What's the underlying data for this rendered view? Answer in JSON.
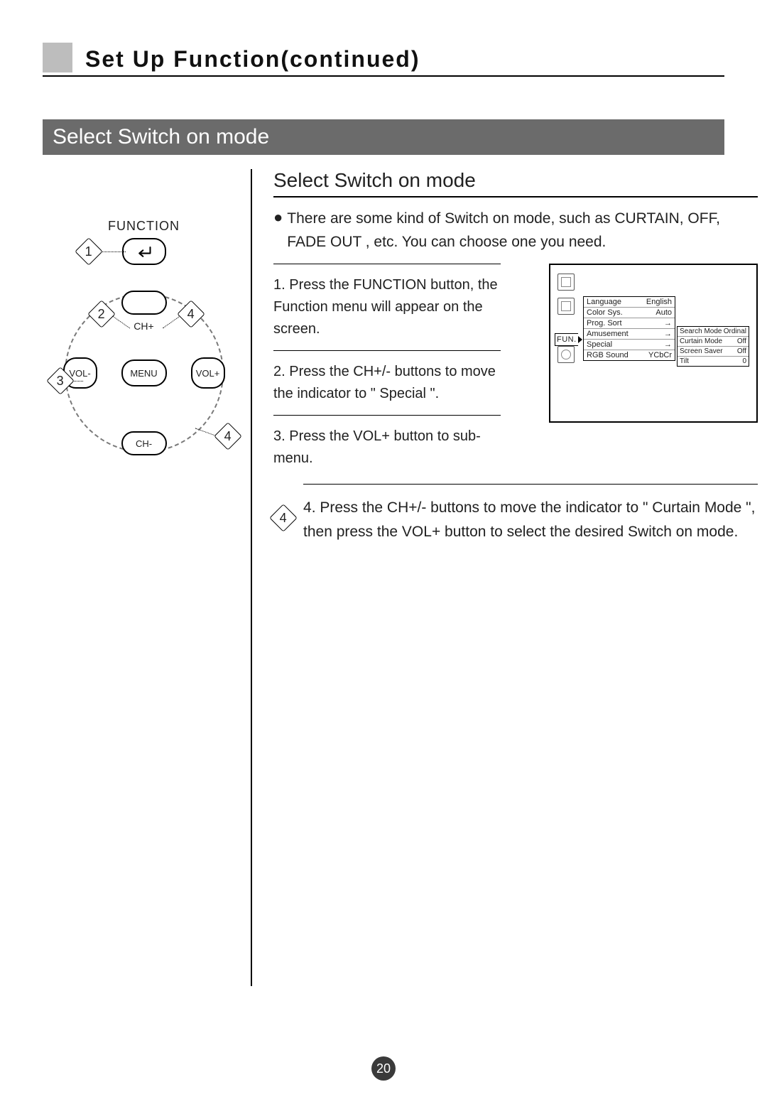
{
  "title": "Set Up Function(continued)",
  "banner": "Select Switch on mode",
  "right_heading": "Select Switch on mode",
  "intro": "There are some kind of  Switch on mode, such as CURTAIN, OFF, FADE OUT , etc. You can choose one you need.",
  "steps": {
    "s1": "1. Press the FUNCTION button, the Function menu will appear on the screen.",
    "s2_lead": "2",
    "s2_rest": ". Press the CH+/- buttons to move the indicator to \" Special \".",
    "s3_lead": "3",
    "s3_rest": ". Press the VOL+ button to sub-menu.",
    "s4_lead": "4",
    "s4_rest": ". Press the CH+/- buttons to move the indicator to \" Curtain Mode \", then press the VOL+ button to select the desired Switch on mode."
  },
  "remote": {
    "function_label": "FUNCTION",
    "ch_plus": "CH+",
    "ch_minus": "CH-",
    "vol_plus": "VOL+",
    "vol_minus": "VOL-",
    "menu": "MENU",
    "tags": {
      "t1": "1",
      "t2": "2",
      "t3": "3",
      "t4a": "4",
      "t4b": "4"
    }
  },
  "osd": {
    "fun_label": "FUN.",
    "menu": [
      {
        "label": "Language",
        "value": "English"
      },
      {
        "label": "Color Sys.",
        "value": "Auto"
      },
      {
        "label": "Prog. Sort",
        "value": "→"
      },
      {
        "label": "Amusement",
        "value": "→"
      },
      {
        "label": "Special",
        "value": "→"
      },
      {
        "label": "RGB Sound",
        "value": "YCbCr"
      }
    ],
    "submenu": [
      {
        "label": "Search Mode",
        "value": "Ordinal"
      },
      {
        "label": "Curtain Mode",
        "value": "Off"
      },
      {
        "label": "Screen Saver",
        "value": "Off"
      },
      {
        "label": "Tilt",
        "value": "0"
      }
    ]
  },
  "page_number": "20",
  "colors": {
    "banner_bg": "#6b6b6b",
    "title_block": "#bdbdbd",
    "pagenum_bg": "#3a3a3a"
  }
}
